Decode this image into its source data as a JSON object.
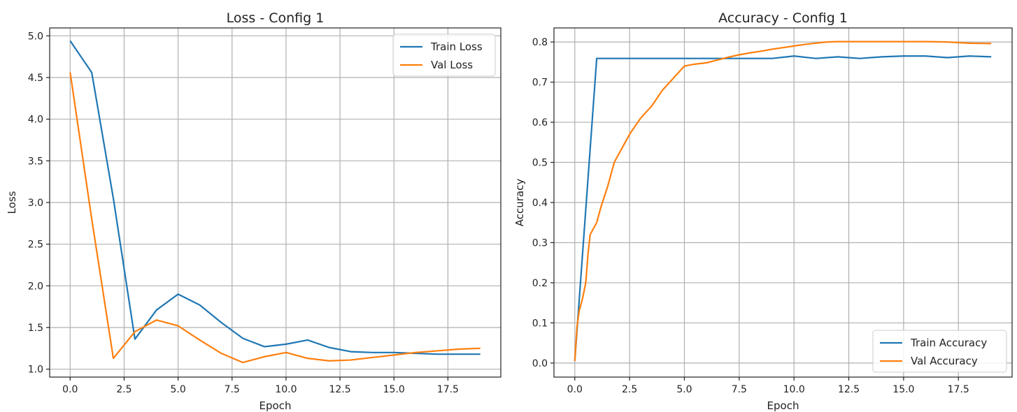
{
  "chart_data": [
    {
      "type": "line",
      "title": "Loss - Config 1",
      "xlabel": "Epoch",
      "ylabel": "Loss",
      "xlim": [
        -0.95,
        19.95
      ],
      "ylim": [
        0.905,
        5.095
      ],
      "xticks": [
        0.0,
        2.5,
        5.0,
        7.5,
        10.0,
        12.5,
        15.0,
        17.5
      ],
      "xtick_labels": [
        "0.0",
        "2.5",
        "5.0",
        "7.5",
        "10.0",
        "12.5",
        "15.0",
        "17.5"
      ],
      "yticks": [
        1.0,
        1.5,
        2.0,
        2.5,
        3.0,
        3.5,
        4.0,
        4.5,
        5.0
      ],
      "ytick_labels": [
        "1.0",
        "1.5",
        "2.0",
        "2.5",
        "3.0",
        "3.5",
        "4.0",
        "4.5",
        "5.0"
      ],
      "grid": true,
      "legend_position": "top-right",
      "series": [
        {
          "name": "Train Loss",
          "color": "#1f77b4",
          "x": [
            0,
            1,
            2,
            3,
            4,
            5,
            6,
            7,
            8,
            9,
            10,
            11,
            12,
            13,
            14,
            15,
            16,
            17,
            18,
            19
          ],
          "y": [
            4.94,
            4.56,
            3.05,
            1.36,
            1.71,
            1.9,
            1.77,
            1.56,
            1.37,
            1.27,
            1.3,
            1.35,
            1.26,
            1.21,
            1.2,
            1.2,
            1.19,
            1.18,
            1.18,
            1.18
          ]
        },
        {
          "name": "Val Loss",
          "color": "#ff7f0e",
          "x": [
            0,
            1,
            2,
            3,
            4,
            5,
            6,
            7,
            8,
            9,
            10,
            11,
            12,
            13,
            14,
            15,
            16,
            17,
            18,
            19
          ],
          "y": [
            4.56,
            2.8,
            1.13,
            1.45,
            1.59,
            1.52,
            1.35,
            1.19,
            1.08,
            1.15,
            1.2,
            1.13,
            1.1,
            1.11,
            1.14,
            1.17,
            1.2,
            1.22,
            1.24,
            1.25
          ]
        }
      ]
    },
    {
      "type": "line",
      "title": "Accuracy - Config 1",
      "xlabel": "Epoch",
      "ylabel": "Accuracy",
      "xlim": [
        -0.95,
        19.95
      ],
      "ylim": [
        -0.035,
        0.835
      ],
      "xticks": [
        0.0,
        2.5,
        5.0,
        7.5,
        10.0,
        12.5,
        15.0,
        17.5
      ],
      "xtick_labels": [
        "0.0",
        "2.5",
        "5.0",
        "7.5",
        "10.0",
        "12.5",
        "15.0",
        "17.5"
      ],
      "yticks": [
        0.0,
        0.1,
        0.2,
        0.3,
        0.4,
        0.5,
        0.6,
        0.7,
        0.8
      ],
      "ytick_labels": [
        "0.0",
        "0.1",
        "0.2",
        "0.3",
        "0.4",
        "0.5",
        "0.6",
        "0.7",
        "0.8"
      ],
      "grid": true,
      "legend_position": "bottom-right",
      "series": [
        {
          "name": "Train Accuracy",
          "color": "#1f77b4",
          "x": [
            0,
            1,
            2,
            3,
            4,
            5,
            6,
            7,
            8,
            9,
            10,
            11,
            12,
            13,
            14,
            15,
            16,
            17,
            18,
            19
          ],
          "y": [
            0.005,
            0.759,
            0.759,
            0.759,
            0.759,
            0.759,
            0.759,
            0.759,
            0.759,
            0.759,
            0.765,
            0.759,
            0.763,
            0.759,
            0.763,
            0.765,
            0.765,
            0.761,
            0.765,
            0.763
          ]
        },
        {
          "name": "Val Accuracy",
          "color": "#ff7f0e",
          "x": [
            0,
            0.1,
            0.2,
            0.35,
            0.5,
            0.6,
            0.7,
            0.8,
            1.0,
            1.2,
            1.5,
            1.8,
            2.0,
            2.3,
            2.5,
            3.0,
            3.5,
            4.0,
            4.5,
            5.0,
            5.5,
            6.0,
            6.5,
            7.0,
            7.5,
            8.0,
            8.5,
            9.0,
            9.5,
            10.0,
            10.5,
            11.0,
            11.5,
            12.0,
            13.0,
            14.0,
            15.0,
            16.0,
            17.0,
            18.0,
            19.0
          ],
          "y": [
            0.005,
            0.09,
            0.13,
            0.16,
            0.2,
            0.27,
            0.32,
            0.33,
            0.35,
            0.39,
            0.44,
            0.5,
            0.52,
            0.55,
            0.57,
            0.61,
            0.64,
            0.68,
            0.71,
            0.74,
            0.745,
            0.748,
            0.755,
            0.762,
            0.768,
            0.773,
            0.777,
            0.782,
            0.786,
            0.79,
            0.794,
            0.797,
            0.8,
            0.801,
            0.801,
            0.801,
            0.801,
            0.801,
            0.8,
            0.797,
            0.796
          ]
        }
      ]
    }
  ]
}
